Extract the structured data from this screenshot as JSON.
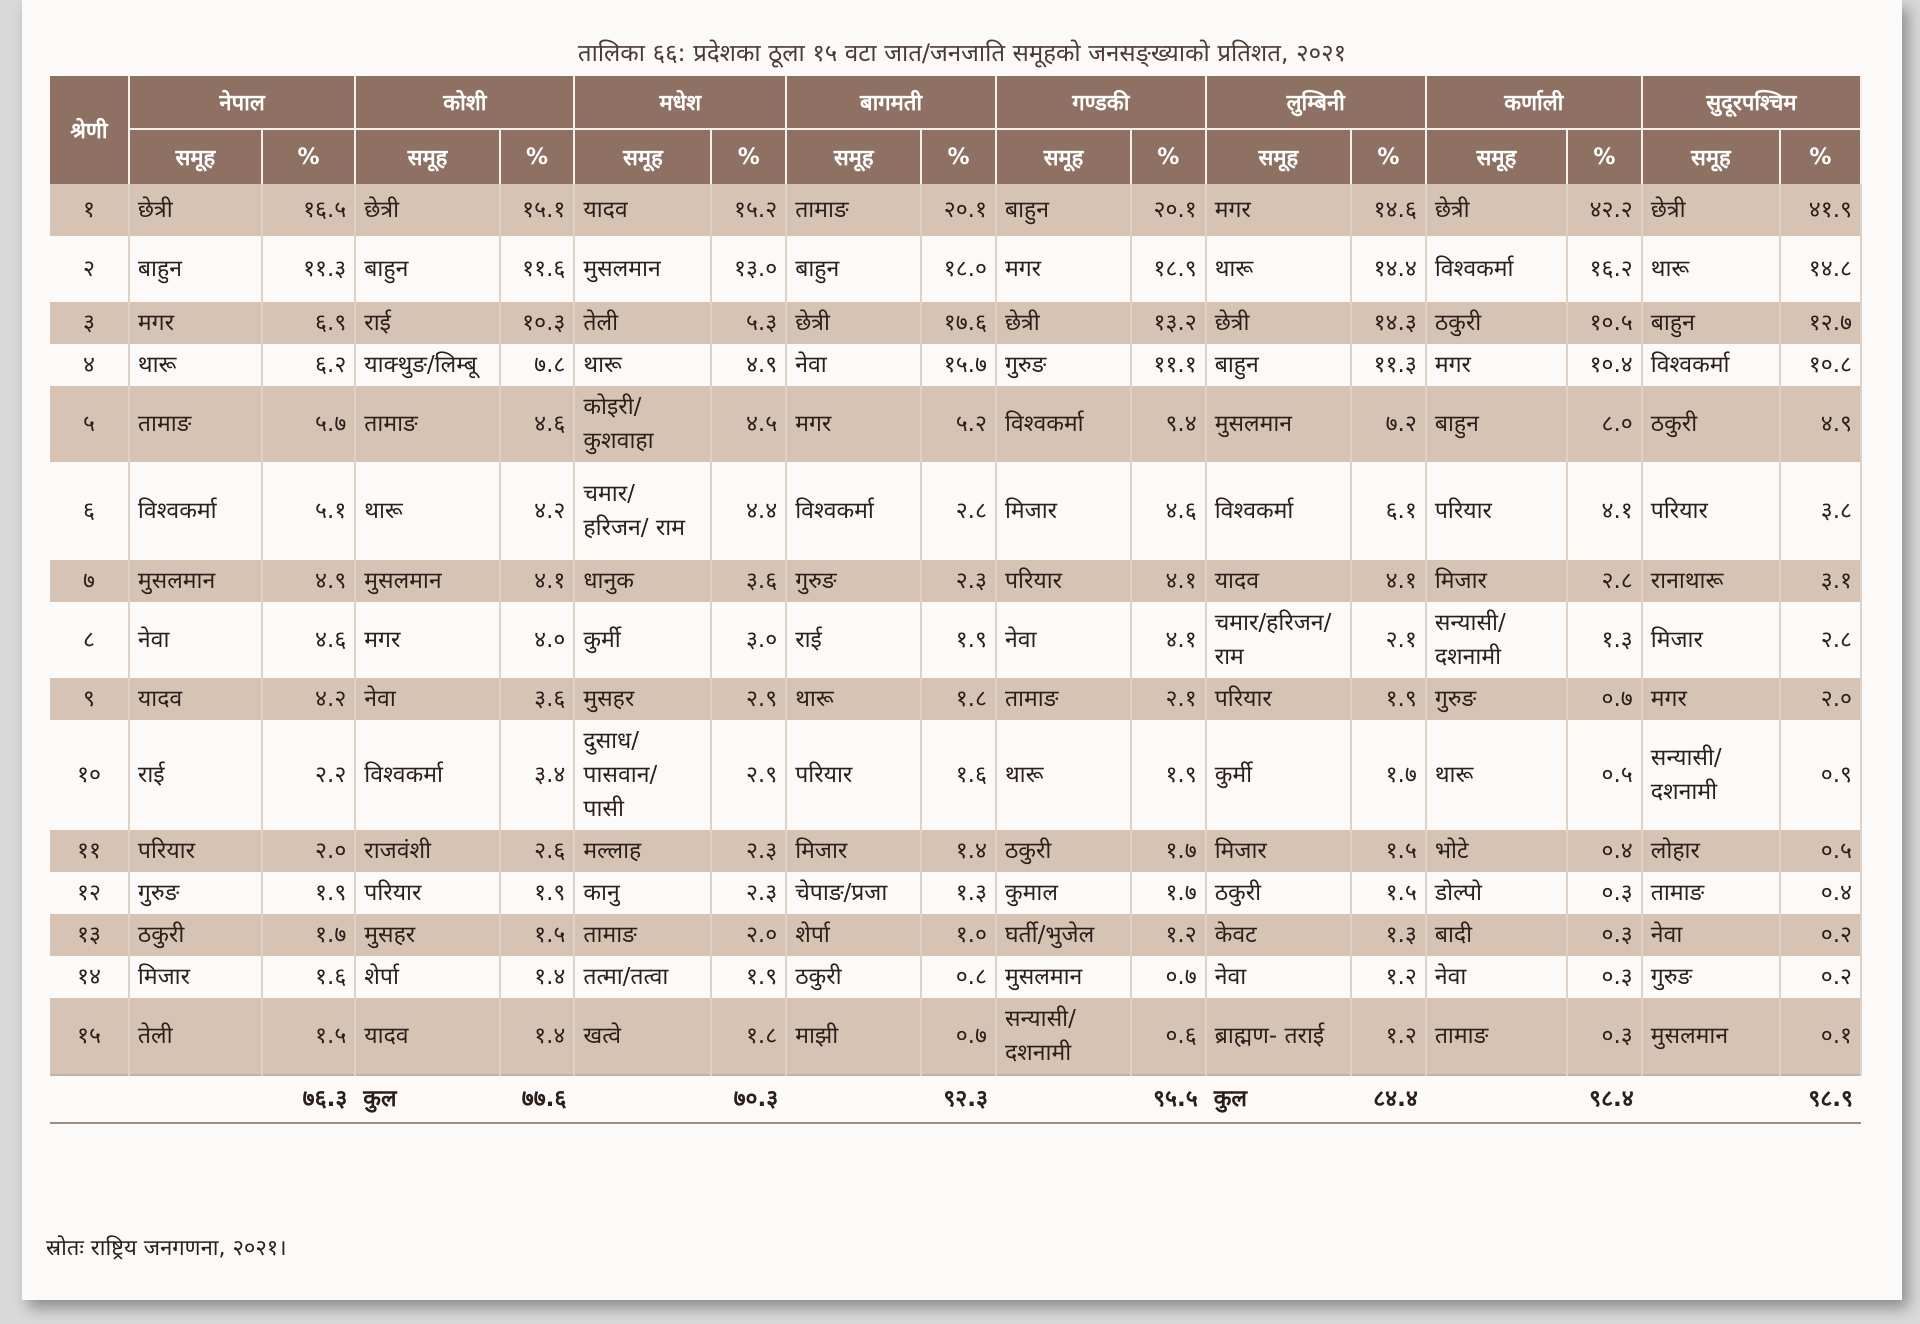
{
  "title": "तालिका ६६: प्रदेशका ठूला १५ वटा जात/जनजाति समूहको जनसङ्ख्याको प्रतिशत, २०२१",
  "rank_header": "श्रेणी",
  "sub_group_label": "समूह",
  "sub_pct_label": "%",
  "regions": [
    "नेपाल",
    "कोशी",
    "मधेश",
    "बागमती",
    "गण्डकी",
    "लुम्बिनी",
    "कर्णाली",
    "सुदूरपश्चिम"
  ],
  "rows": [
    {
      "rank": "१",
      "cells": [
        [
          "छेत्री",
          "१६.५"
        ],
        [
          "छेत्री",
          "१५.१"
        ],
        [
          "यादव",
          "१५.२"
        ],
        [
          "तामाङ",
          "२०.१"
        ],
        [
          "बाहुन",
          "२०.१"
        ],
        [
          "मगर",
          "१४.६"
        ],
        [
          "छेत्री",
          "४२.२"
        ],
        [
          "छेत्री",
          "४१.९"
        ]
      ]
    },
    {
      "rank": "२",
      "cells": [
        [
          "बाहुन",
          "११.३"
        ],
        [
          "बाहुन",
          "११.६"
        ],
        [
          "मुसलमान",
          "१३.०"
        ],
        [
          "बाहुन",
          "१८.०"
        ],
        [
          "मगर",
          "१८.९"
        ],
        [
          "थारू",
          "१४.४"
        ],
        [
          "विश्वकर्मा",
          "१६.२"
        ],
        [
          "थारू",
          "१४.८"
        ]
      ]
    },
    {
      "rank": "३",
      "cells": [
        [
          "मगर",
          "६.९"
        ],
        [
          "राई",
          "१०.३"
        ],
        [
          "तेली",
          "५.३"
        ],
        [
          "छेत्री",
          "१७.६"
        ],
        [
          "छेत्री",
          "१३.२"
        ],
        [
          "छेत्री",
          "१४.३"
        ],
        [
          "ठकुरी",
          "१०.५"
        ],
        [
          "बाहुन",
          "१२.७"
        ]
      ]
    },
    {
      "rank": "४",
      "cells": [
        [
          "थारू",
          "६.२"
        ],
        [
          "याक्थुङ/लिम्बू",
          "७.८"
        ],
        [
          "थारू",
          "४.९"
        ],
        [
          "नेवा",
          "१५.७"
        ],
        [
          "गुरुङ",
          "११.१"
        ],
        [
          "बाहुन",
          "११.३"
        ],
        [
          "मगर",
          "१०.४"
        ],
        [
          "विश्वकर्मा",
          "१०.८"
        ]
      ]
    },
    {
      "rank": "५",
      "cells": [
        [
          "तामाङ",
          "५.७"
        ],
        [
          "तामाङ",
          "४.६"
        ],
        [
          "कोइरी/ कुशवाहा",
          "४.५"
        ],
        [
          "मगर",
          "५.२"
        ],
        [
          "विश्वकर्मा",
          "९.४"
        ],
        [
          "मुसलमान",
          "७.२"
        ],
        [
          "बाहुन",
          "८.०"
        ],
        [
          "ठकुरी",
          "४.९"
        ]
      ]
    },
    {
      "rank": "६",
      "cells": [
        [
          "विश्वकर्मा",
          "५.१"
        ],
        [
          "थारू",
          "४.२"
        ],
        [
          "चमार/ हरिजन/ राम",
          "४.४"
        ],
        [
          "विश्वकर्मा",
          "२.८"
        ],
        [
          "मिजार",
          "४.६"
        ],
        [
          "विश्वकर्मा",
          "६.१"
        ],
        [
          "परियार",
          "४.१"
        ],
        [
          "परियार",
          "३.८"
        ]
      ]
    },
    {
      "rank": "७",
      "cells": [
        [
          "मुसलमान",
          "४.९"
        ],
        [
          "मुसलमान",
          "४.१"
        ],
        [
          "धानुक",
          "३.६"
        ],
        [
          "गुरुङ",
          "२.३"
        ],
        [
          "परियार",
          "४.१"
        ],
        [
          "यादव",
          "४.१"
        ],
        [
          "मिजार",
          "२.८"
        ],
        [
          "रानाथारू",
          "३.१"
        ]
      ]
    },
    {
      "rank": "८",
      "cells": [
        [
          "नेवा",
          "४.६"
        ],
        [
          "मगर",
          "४.०"
        ],
        [
          "कुर्मी",
          "३.०"
        ],
        [
          "राई",
          "१.९"
        ],
        [
          "नेवा",
          "४.१"
        ],
        [
          "चमार/हरिजन/ राम",
          "२.१"
        ],
        [
          "सन्यासी/ दशनामी",
          "१.३"
        ],
        [
          "मिजार",
          "२.८"
        ]
      ]
    },
    {
      "rank": "९",
      "cells": [
        [
          "यादव",
          "४.२"
        ],
        [
          "नेवा",
          "३.६"
        ],
        [
          "मुसहर",
          "२.९"
        ],
        [
          "थारू",
          "१.८"
        ],
        [
          "तामाङ",
          "२.१"
        ],
        [
          "परियार",
          "१.९"
        ],
        [
          "गुरुङ",
          "०.७"
        ],
        [
          "मगर",
          "२.०"
        ]
      ]
    },
    {
      "rank": "१०",
      "cells": [
        [
          "राई",
          "२.२"
        ],
        [
          "विश्वकर्मा",
          "३.४"
        ],
        [
          "दुसाध/ पासवान/ पासी",
          "२.९"
        ],
        [
          "परियार",
          "१.६"
        ],
        [
          "थारू",
          "१.९"
        ],
        [
          "कुर्मी",
          "१.७"
        ],
        [
          "थारू",
          "०.५"
        ],
        [
          "सन्यासी/ दशनामी",
          "०.९"
        ]
      ]
    },
    {
      "rank": "११",
      "cells": [
        [
          "परियार",
          "२.०"
        ],
        [
          "राजवंशी",
          "२.६"
        ],
        [
          "मल्लाह",
          "२.३"
        ],
        [
          "मिजार",
          "१.४"
        ],
        [
          "ठकुरी",
          "१.७"
        ],
        [
          "मिजार",
          "१.५"
        ],
        [
          "भोटे",
          "०.४"
        ],
        [
          "लोहार",
          "०.५"
        ]
      ]
    },
    {
      "rank": "१२",
      "cells": [
        [
          "गुरुङ",
          "१.९"
        ],
        [
          "परियार",
          "१.९"
        ],
        [
          "कानु",
          "२.३"
        ],
        [
          "चेपाङ/प्रजा",
          "१.३"
        ],
        [
          "कुमाल",
          "१.७"
        ],
        [
          "ठकुरी",
          "१.५"
        ],
        [
          "डोल्पो",
          "०.३"
        ],
        [
          "तामाङ",
          "०.४"
        ]
      ]
    },
    {
      "rank": "१३",
      "cells": [
        [
          "ठकुरी",
          "१.७"
        ],
        [
          "मुसहर",
          "१.५"
        ],
        [
          "तामाङ",
          "२.०"
        ],
        [
          "शेर्पा",
          "१.०"
        ],
        [
          "घर्ती/भुजेल",
          "१.२"
        ],
        [
          "केवट",
          "१.३"
        ],
        [
          "बादी",
          "०.३"
        ],
        [
          "नेवा",
          "०.२"
        ]
      ]
    },
    {
      "rank": "१४",
      "cells": [
        [
          "मिजार",
          "१.६"
        ],
        [
          "शेर्पा",
          "१.४"
        ],
        [
          "तत्मा/तत्वा",
          "१.९"
        ],
        [
          "ठकुरी",
          "०.८"
        ],
        [
          "मुसलमान",
          "०.७"
        ],
        [
          "नेवा",
          "१.२"
        ],
        [
          "नेवा",
          "०.३"
        ],
        [
          "गुरुङ",
          "०.२"
        ]
      ]
    },
    {
      "rank": "१५",
      "cells": [
        [
          "तेली",
          "१.५"
        ],
        [
          "यादव",
          "१.४"
        ],
        [
          "खत्वे",
          "१.८"
        ],
        [
          "माझी",
          "०.७"
        ],
        [
          "सन्यासी/ दशनामी",
          "०.६"
        ],
        [
          "ब्राह्मण- तराई",
          "१.२"
        ],
        [
          "तामाङ",
          "०.३"
        ],
        [
          "मुसलमान",
          "०.१"
        ]
      ]
    }
  ],
  "totals": {
    "labels": [
      "",
      "कुल",
      "",
      "",
      "",
      "कुल",
      "",
      ""
    ],
    "values": [
      "७६.३",
      "७७.६",
      "७०.३",
      "९२.३",
      "९५.५",
      "८४.४",
      "९८.४",
      "९८.९"
    ]
  },
  "source": "स्रोतः राष्ट्रिय जनगणना, २०२१।"
}
